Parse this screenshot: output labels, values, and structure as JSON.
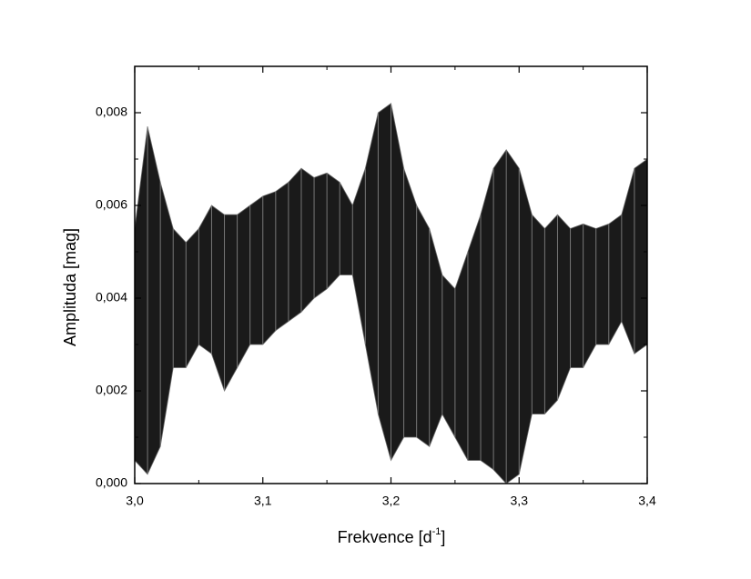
{
  "chart_data": {
    "type": "range",
    "y_label": "Amplituda [mag]",
    "x_label": {
      "text": "Frekvence [d",
      "sup": "-1",
      "end": "]"
    },
    "x": [
      3.0,
      3.01,
      3.02,
      3.03,
      3.04,
      3.05,
      3.06,
      3.07,
      3.08,
      3.09,
      3.1,
      3.11,
      3.12,
      3.13,
      3.14,
      3.15,
      3.16,
      3.17,
      3.18,
      3.19,
      3.2,
      3.21,
      3.22,
      3.23,
      3.24,
      3.25,
      3.26,
      3.27,
      3.28,
      3.29,
      3.3,
      3.31,
      3.32,
      3.33,
      3.34,
      3.35,
      3.36,
      3.37,
      3.38,
      3.39,
      3.4
    ],
    "high": [
      0.0055,
      0.0077,
      0.0065,
      0.0055,
      0.0052,
      0.0055,
      0.006,
      0.0058,
      0.0058,
      0.006,
      0.0062,
      0.0063,
      0.0065,
      0.0068,
      0.0066,
      0.0067,
      0.0065,
      0.006,
      0.0068,
      0.008,
      0.0082,
      0.0068,
      0.006,
      0.0055,
      0.0045,
      0.0042,
      0.005,
      0.0058,
      0.0068,
      0.0072,
      0.0068,
      0.0058,
      0.0055,
      0.0058,
      0.0055,
      0.0056,
      0.0055,
      0.0056,
      0.0058,
      0.0068,
      0.007
    ],
    "low": [
      0.0005,
      0.0002,
      0.0008,
      0.0025,
      0.0025,
      0.003,
      0.0028,
      0.002,
      0.0025,
      0.003,
      0.003,
      0.0033,
      0.0035,
      0.0037,
      0.004,
      0.0042,
      0.0045,
      0.0045,
      0.003,
      0.0015,
      0.0005,
      0.001,
      0.001,
      0.0008,
      0.0015,
      0.001,
      0.0005,
      0.0005,
      0.0003,
      0.0,
      0.0002,
      0.0015,
      0.0015,
      0.0018,
      0.0025,
      0.0025,
      0.003,
      0.003,
      0.0035,
      0.0028,
      0.003
    ],
    "color": "#1a1a1a",
    "xlim": [
      3.0,
      3.4
    ],
    "xticks": [
      {
        "value": 3.0,
        "label": "3,0"
      },
      {
        "value": 3.1,
        "label": "3,1"
      },
      {
        "value": 3.2,
        "label": "3,2"
      },
      {
        "value": 3.3,
        "label": "3,3"
      },
      {
        "value": 3.4,
        "label": "3,4"
      }
    ],
    "ylim": [
      0,
      0.009
    ],
    "yticks": [
      {
        "value": 0,
        "label": "0,000"
      },
      {
        "value": 0.002,
        "label": "0,002"
      },
      {
        "value": 0.004,
        "label": "0,004"
      },
      {
        "value": 0.006,
        "label": "0,006"
      },
      {
        "value": 0.008,
        "label": "0,008"
      }
    ],
    "grid": false
  }
}
